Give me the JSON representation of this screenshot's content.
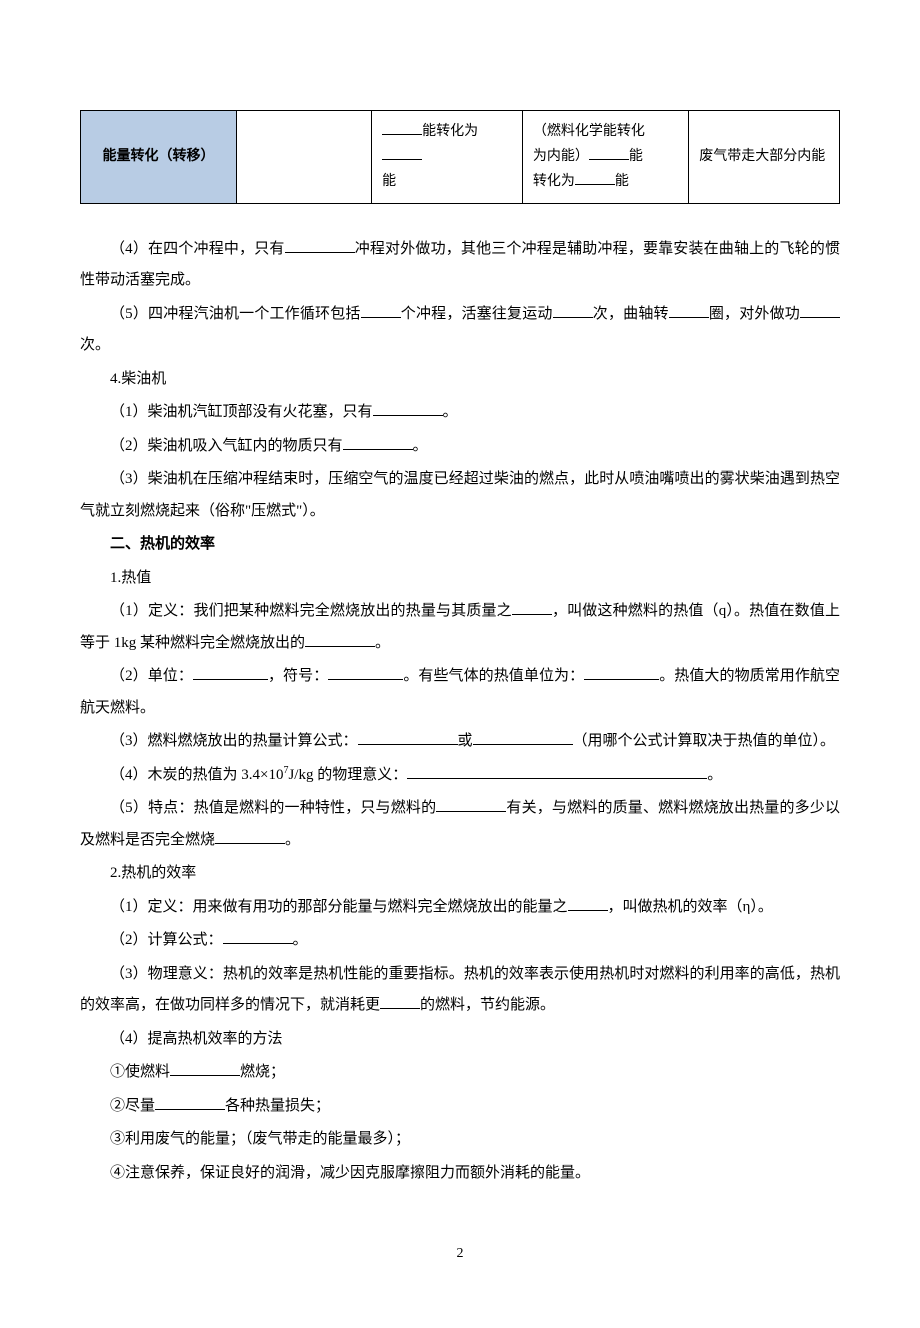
{
  "table": {
    "header_cell": "能量转化（转移）",
    "col3_text_before": "能转化为",
    "col3_text_after": "能",
    "col4_line1": "（燃料化学能转化",
    "col4_line2_a": "为内能）",
    "col4_line2_b": "能",
    "col4_line3_a": "转化为",
    "col4_line3_b": "能",
    "col5_text": "废气带走大部分内能",
    "header_bg": "#b8cce4"
  },
  "p4": {
    "prefix": "（4）在四个冲程中，只有",
    "suffix": "冲程对外做功，其他三个冲程是辅助冲程，要靠安装在曲轴上的飞轮的惯性带动活塞完成。"
  },
  "p5": {
    "prefix": "（5）四冲程汽油机一个工作循环包括",
    "mid1": "个冲程，活塞往复运动",
    "mid2": "次，曲轴转",
    "mid3": "圈，对外做功",
    "suffix": "次。"
  },
  "s4": {
    "title": "4.柴油机",
    "p1_prefix": "（1）柴油机汽缸顶部没有火花塞，只有",
    "p1_suffix": "。",
    "p2_prefix": "（2）柴油机吸入气缸内的物质只有",
    "p2_suffix": "。",
    "p3": "（3）柴油机在压缩冲程结束时，压缩空气的温度已经超过柴油的燃点，此时从喷油嘴喷出的雾状柴油遇到热空气就立刻燃烧起来（俗称\"压燃式\"）。"
  },
  "section2_title": "二、热机的效率",
  "s2_1": {
    "title": "1.热值",
    "p1_a": "（1）定义：我们把某种燃料完全燃烧放出的热量与其质量之",
    "p1_b": "，叫做这种燃料的热值（q）。热值在数值上等于 1kg 某种燃料完全燃烧放出的",
    "p1_c": "。",
    "p2_a": "（2）单位：",
    "p2_b": "，符号：",
    "p2_c": "。有些气体的热值单位为：",
    "p2_d": "。热值大的物质常用作航空航天燃料。",
    "p3_a": "（3）燃料燃烧放出的热量计算公式：",
    "p3_b": "或",
    "p3_c": "（用哪个公式计算取决于热值的单位）。",
    "p4_a": "（4）木炭的热值为 3.4×10",
    "p4_sup": "7",
    "p4_b": "J/kg 的物理意义：",
    "p4_c": "。",
    "p5_a": "（5）特点：热值是燃料的一种特性，只与燃料的",
    "p5_b": "有关，与燃料的质量、燃料燃烧放出热量的多少以及燃料是否完全燃烧",
    "p5_c": "。"
  },
  "s2_2": {
    "title": "2.热机的效率",
    "p1_a": "（1）定义：用来做有用功的那部分能量与燃料完全燃烧放出的能量之",
    "p1_b": "，叫做热机的效率（η）。",
    "p2_a": "（2）计算公式：",
    "p2_b": "。",
    "p3_a": "（3）物理意义：热机的效率是热机性能的重要指标。热机的效率表示使用热机时对燃料的利用率的高低，热机的效率高，在做功同样多的情况下，就消耗更",
    "p3_b": "的燃料，节约能源。",
    "p4": "（4）提高热机效率的方法",
    "m1_a": "①使燃料",
    "m1_b": "燃烧；",
    "m2_a": "②尽量",
    "m2_b": "各种热量损失；",
    "m3": "③利用废气的能量；（废气带走的能量最多）；",
    "m4": "④注意保养，保证良好的润滑，减少因克服摩擦阻力而额外消耗的能量。"
  },
  "page_number": "2"
}
